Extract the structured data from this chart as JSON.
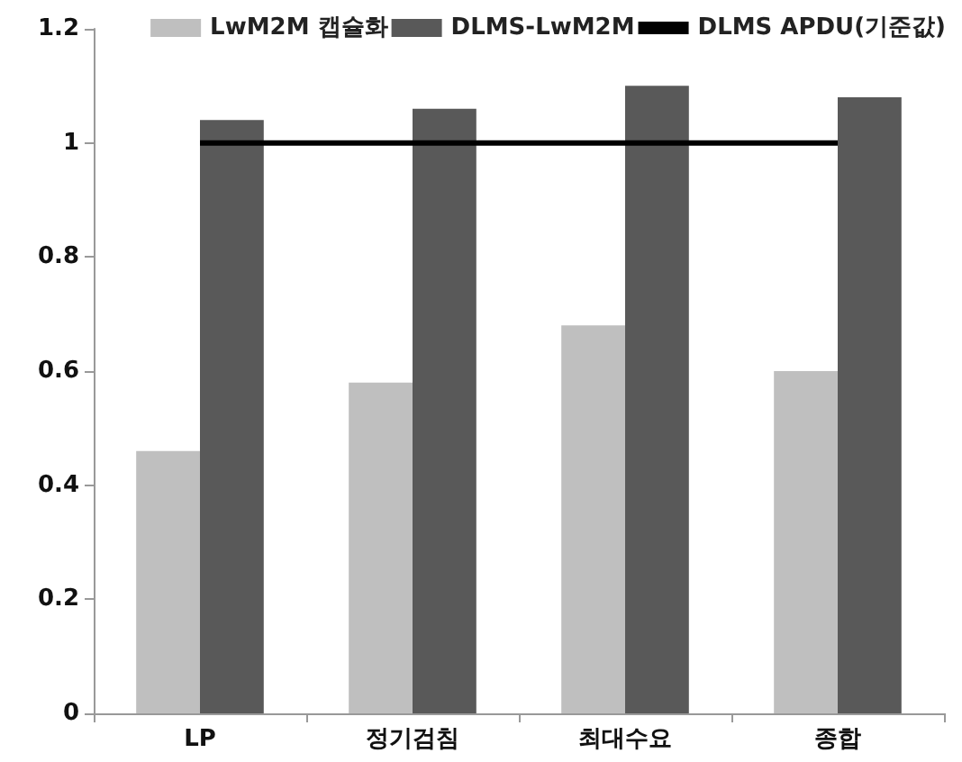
{
  "chart_data": {
    "type": "bar",
    "categories": [
      "LP",
      "정기검침",
      "최대수요",
      "종합"
    ],
    "series": [
      {
        "name": "LwM2M 캡슐화",
        "color": "#bfbfbf",
        "values": [
          0.46,
          0.58,
          0.68,
          0.6
        ]
      },
      {
        "name": "DLMS-LwM2M",
        "color": "#595959",
        "values": [
          1.04,
          1.06,
          1.1,
          1.08
        ]
      },
      {
        "name": "DLMS APDU(기준값)",
        "type": "line",
        "color": "#000000",
        "values": [
          1,
          1,
          1,
          1
        ]
      }
    ],
    "ylim": [
      0,
      1.2
    ],
    "yticks": [
      0,
      0.2,
      0.4,
      0.6,
      0.8,
      1,
      1.2
    ],
    "grid": false,
    "legend": "top right",
    "marker": "none"
  }
}
